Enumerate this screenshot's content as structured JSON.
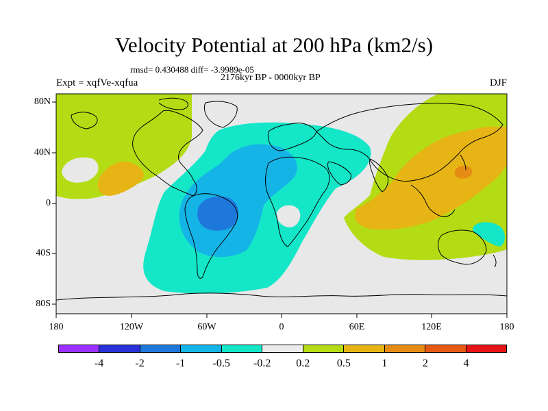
{
  "title": "Velocity Potential at 200 hPa (km2/s)",
  "stats": "rmsd= 0.430488 diff= -3.9989e-05",
  "period": "2176kyr BP - 0000kyr BP",
  "experiment": "Expt = xqfVe-xqfua",
  "season": "DJF",
  "lat_labels": [
    "80N",
    "40N",
    "0",
    "40S",
    "80S"
  ],
  "lon_labels": [
    "180",
    "120W",
    "60W",
    "0",
    "60E",
    "120E",
    "180"
  ],
  "colorbar": {
    "colors": [
      "#9b30ff",
      "#2832d8",
      "#1e78dc",
      "#14b4e6",
      "#14e6c8",
      "#ebebeb",
      "#b4dc14",
      "#e6b414",
      "#e68c14",
      "#e65a14",
      "#e61414"
    ],
    "labels": [
      "-4",
      "-2",
      "-1",
      "-0.5",
      "-0.2",
      "0.2",
      "0.5",
      "1",
      "2",
      "4"
    ]
  },
  "colors": {
    "background": "#e8e8e8",
    "coast": "#000000"
  }
}
